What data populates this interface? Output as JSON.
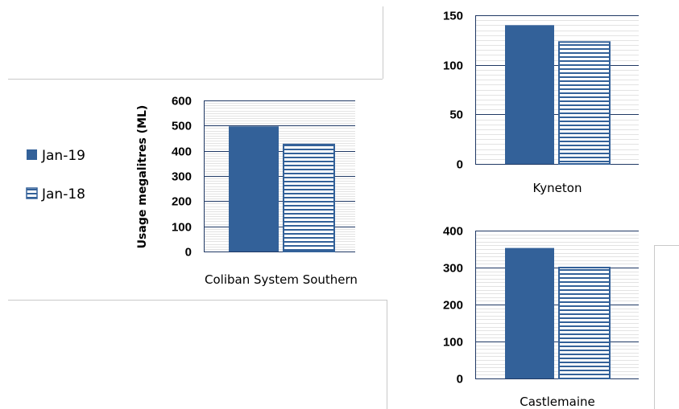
{
  "legend": [
    {
      "name": "Jan-19",
      "color": "#336199",
      "pattern": "solid"
    },
    {
      "name": "Jan-18",
      "color": "#336199",
      "pattern": "horizontal-lines"
    }
  ],
  "chart_data": [
    {
      "type": "bar",
      "categories": [
        "Coliban System Southern"
      ],
      "series": [
        {
          "name": "Jan-19",
          "values": [
            497
          ]
        },
        {
          "name": "Jan-18",
          "values": [
            425
          ]
        }
      ],
      "ylabel": "Usage megalitres (ML)",
      "ylim": [
        0,
        600
      ],
      "yticks": [
        0,
        100,
        200,
        300,
        400,
        500,
        600
      ],
      "grid": true,
      "legend": "left"
    },
    {
      "type": "bar",
      "categories": [
        "Kyneton"
      ],
      "series": [
        {
          "name": "Jan-19",
          "values": [
            140
          ]
        },
        {
          "name": "Jan-18",
          "values": [
            123
          ]
        }
      ],
      "ylim": [
        0,
        150
      ],
      "yticks": [
        0,
        50,
        100,
        150
      ],
      "grid": true
    },
    {
      "type": "bar",
      "categories": [
        "Castlemaine"
      ],
      "series": [
        {
          "name": "Jan-19",
          "values": [
            353
          ]
        },
        {
          "name": "Jan-18",
          "values": [
            300
          ]
        }
      ],
      "ylim": [
        0,
        400
      ],
      "yticks": [
        0,
        100,
        200,
        300,
        400
      ],
      "grid": true
    }
  ]
}
